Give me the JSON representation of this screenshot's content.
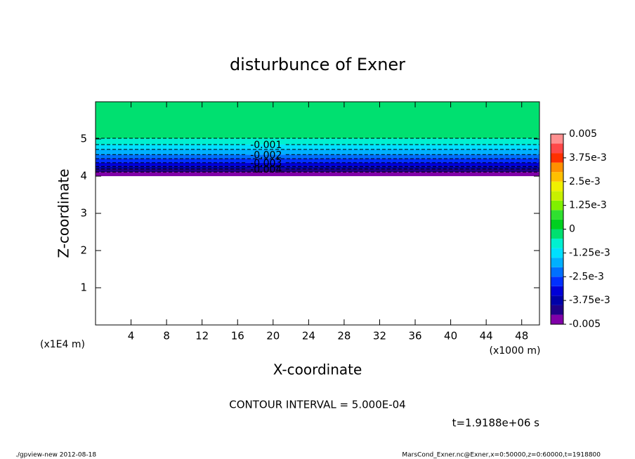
{
  "chart_data": {
    "type": "contour",
    "title": "disturbunce of Exner",
    "xlabel": "X-coordinate",
    "ylabel": "Z-coordinate",
    "xunit": "(x1000 m)",
    "yunit": "(x1E4 m)",
    "xlim": [
      0,
      50
    ],
    "ylim": [
      0,
      6
    ],
    "xticks": [
      4,
      8,
      12,
      16,
      20,
      24,
      28,
      32,
      36,
      40,
      44,
      48
    ],
    "yticks": [
      1,
      2,
      3,
      4,
      5
    ],
    "field_bottom": 4,
    "contours": [
      {
        "level": -0.0005,
        "z": 5.02,
        "labeled": false
      },
      {
        "level": -0.001,
        "z": 4.85,
        "labeled": true
      },
      {
        "level": -0.0015,
        "z": 4.72,
        "labeled": false
      },
      {
        "level": -0.002,
        "z": 4.58,
        "labeled": true
      },
      {
        "level": -0.0025,
        "z": 4.47,
        "labeled": false
      },
      {
        "level": -0.003,
        "z": 4.36,
        "labeled": true
      },
      {
        "level": -0.0035,
        "z": 4.26,
        "labeled": false
      },
      {
        "level": -0.004,
        "z": 4.19,
        "labeled": true
      },
      {
        "level": -0.0045,
        "z": 4.11,
        "labeled": false
      }
    ],
    "colorbar": {
      "lim": [
        -0.005,
        0.005
      ],
      "ticks": [
        {
          "value": 0.005,
          "label": "0.005"
        },
        {
          "value": 0.00375,
          "label": "3.75e-3"
        },
        {
          "value": 0.0025,
          "label": "2.5e-3"
        },
        {
          "value": 0.00125,
          "label": "1.25e-3"
        },
        {
          "value": 0,
          "label": "0"
        },
        {
          "value": -0.00125,
          "label": "-1.25e-3"
        },
        {
          "value": -0.0025,
          "label": "-2.5e-3"
        },
        {
          "value": -0.00375,
          "label": "-3.75e-3"
        },
        {
          "value": -0.005,
          "label": "-0.005"
        }
      ],
      "colors": [
        "#8000a8",
        "#200088",
        "#0000a8",
        "#0000d8",
        "#0030ff",
        "#0070ff",
        "#00b0ff",
        "#00e0ff",
        "#00f0d0",
        "#00e070",
        "#00d020",
        "#30e030",
        "#80f000",
        "#c8f000",
        "#f0f000",
        "#ffc000",
        "#ff9000",
        "#ff3000",
        "#ff4848",
        "#ff9090"
      ]
    },
    "contour_interval": "CONTOUR INTERVAL = 5.000E-04",
    "time_label": "t=1.9188e+06 s",
    "footer_left": "./gpview-new  2012-08-18",
    "footer_right": "MarsCond_Exner.nc@Exner,x=0:50000,z=0:60000,t=1918800"
  }
}
